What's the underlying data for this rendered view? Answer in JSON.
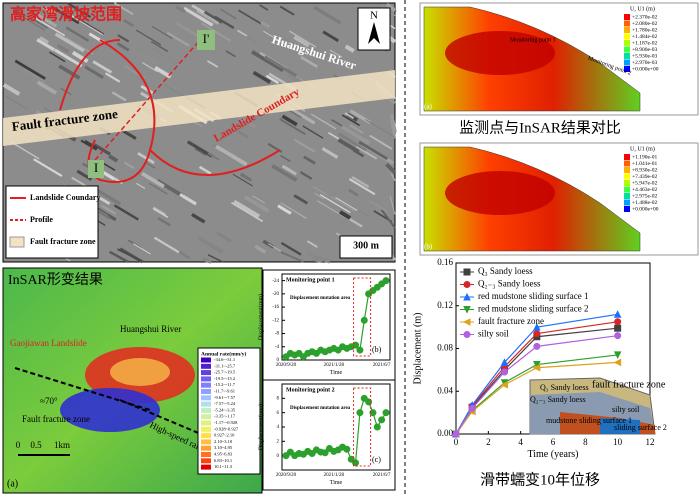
{
  "map": {
    "title": "高家湾滑坡范围",
    "river": "Huangshui River",
    "fault": "Fault fracture zone",
    "boundary": "Landslide Coundary",
    "profile_start": "I",
    "profile_end": "I'",
    "north": "N",
    "scale": "300 m",
    "legend": [
      "Landslide Coundary",
      "Profile",
      "Fault fracture zone"
    ]
  },
  "insar": {
    "title": "InSAR形变结果",
    "river": "Huangshui River",
    "landslide": "Gaojiawan Landslide",
    "fault": "Fault fracture zone",
    "railway": "High-speed railway line",
    "angle": "≈70°",
    "scale": [
      "0",
      "0.5",
      "1km"
    ],
    "panel": "(a)",
    "colorbar_title": "Annual rate(mm/y)",
    "colorbar": [
      "-34.6~-31.1",
      "-31.1~-25.7",
      "-25.7~-19.5",
      "-19.5~-15.2",
      "-15.2~-11.7",
      "-11.7~-9.61",
      "-9.61~-7.57",
      "-7.57~-5.24",
      "-5.24~-3.35",
      "-3.35~-1.17",
      "-1.17~-0.928",
      "-0.928~0.927",
      "0.927~2.10",
      "2.10~3.10",
      "3.10~4.95",
      "4.95~6.83",
      "6.83~10.1",
      "10.1~11.3"
    ]
  },
  "fem": {
    "caption": "监测点与InSAR结果对比",
    "a": {
      "panel": "(a)",
      "title": "U, U1 (m)",
      "point1": "Monitoring point 1",
      "point2": "Monitoring point 2",
      "colorbar": [
        "+2.370e-02",
        "+2.080e-02",
        "+1.780e-02",
        "+1.484e-02",
        "+1.187e-02",
        "+8.900e-03",
        "+5.930e-03",
        "+2.970e-03",
        "+0.000e+00"
      ]
    },
    "b": {
      "panel": "(b)",
      "title": "U, U1 (m)",
      "colorbar": [
        "+1.190e-01",
        "+1.041e-01",
        "+8.930e-02",
        "+7.439e-02",
        "+5.947e-02",
        "+4.463e-02",
        "+2.975e-02",
        "+1.488e-02",
        "+0.000e+00"
      ]
    }
  },
  "chart_data": [
    {
      "type": "line",
      "caption": "滑带蠕变10年位移",
      "x_label": "Time (years)",
      "y_label": "Displacement (m)",
      "x": [
        0,
        1,
        3,
        5,
        10
      ],
      "xlim": [
        0,
        12
      ],
      "xticks": [
        0,
        2,
        4,
        6,
        8,
        10,
        12
      ],
      "ylim": [
        0,
        0.16
      ],
      "yticks": [
        {
          "value": 0,
          "label": "0.00"
        },
        0.04,
        0.08,
        0.12,
        0.16
      ],
      "legend": "upper left",
      "series": [
        {
          "name": "Q₃ Sandy loess",
          "color": "#404040",
          "marker": "square",
          "values": [
            0,
            0.025,
            0.06,
            0.091,
            0.099
          ]
        },
        {
          "name": "Q₂₋₃ Sandy loess",
          "color": "#d62728",
          "marker": "circle",
          "values": [
            0,
            0.026,
            0.063,
            0.094,
            0.105
          ]
        },
        {
          "name": "red mudstone sliding surface 1",
          "color": "#1f6fff",
          "marker": "triangle-up",
          "values": [
            0,
            0.027,
            0.067,
            0.1,
            0.112
          ]
        },
        {
          "name": "red mudstone sliding surface 2",
          "color": "#2ca02c",
          "marker": "triangle-down",
          "values": [
            0,
            0.022,
            0.048,
            0.065,
            0.074
          ]
        },
        {
          "name": "fault fracture zone",
          "color": "#e0a020",
          "marker": "triangle-left",
          "values": [
            0,
            0.021,
            0.046,
            0.062,
            0.067
          ]
        },
        {
          "name": "silty soil",
          "color": "#b060e0",
          "marker": "circle",
          "values": [
            0,
            0.024,
            0.058,
            0.082,
            0.092
          ]
        }
      ],
      "inset": [
        "Q₃ Sandy loess",
        "Q₂₋₃ Sandy loess",
        "fault fracture zone",
        "silty soil",
        "mudstone sliding surface 1",
        "sliding surface 2"
      ]
    },
    {
      "type": "line",
      "title": "Monitoring point 1",
      "annotation": "Displacement mutation area",
      "panel": "(b)",
      "x_label": "Time",
      "y_label": "Displacement(mm)",
      "categories": [
        "2020/9/20",
        null,
        null,
        null,
        null,
        null,
        null,
        null,
        null,
        null,
        null,
        "2021/1/28",
        null,
        null,
        null,
        null,
        null,
        null,
        null,
        null,
        null,
        null,
        "2021/6/7",
        null
      ],
      "ylim": [
        0,
        -26
      ],
      "yticks": [
        0,
        -4,
        -8,
        -12,
        -16,
        -20,
        -24
      ],
      "series": [
        {
          "color": "#2ca02c",
          "values": [
            -1,
            -2,
            -1.5,
            -2,
            -1,
            -2,
            -2.5,
            -2,
            -3,
            -2.5,
            -3,
            -3.5,
            -3,
            -4,
            -3.5,
            -4,
            -4.5,
            -3,
            -12,
            -20,
            -21,
            -22,
            -23,
            -24
          ]
        }
      ]
    },
    {
      "type": "line",
      "title": "Monitoring point 2",
      "annotation": "Displacement mutation area",
      "panel": "(c)",
      "x_label": "Time",
      "y_label": "Displacement(mm)",
      "categories": [
        "2020/9/20",
        null,
        null,
        null,
        null,
        null,
        null,
        null,
        null,
        null,
        null,
        "2021/1/28",
        null,
        null,
        null,
        null,
        null,
        null,
        null,
        null,
        null,
        null,
        "2021/6/7",
        null
      ],
      "ylim": [
        -2,
        10
      ],
      "yticks": [
        0,
        2,
        4,
        6,
        8
      ],
      "series": [
        {
          "color": "#2ca02c",
          "values": [
            0,
            0.5,
            0,
            0.3,
            0.2,
            0.6,
            0.3,
            0.8,
            0.5,
            0.4,
            1,
            0.6,
            0.8,
            1.2,
            0.9,
            -0.5,
            -1,
            6,
            8,
            7.5,
            6,
            4,
            5,
            6
          ]
        }
      ]
    }
  ]
}
